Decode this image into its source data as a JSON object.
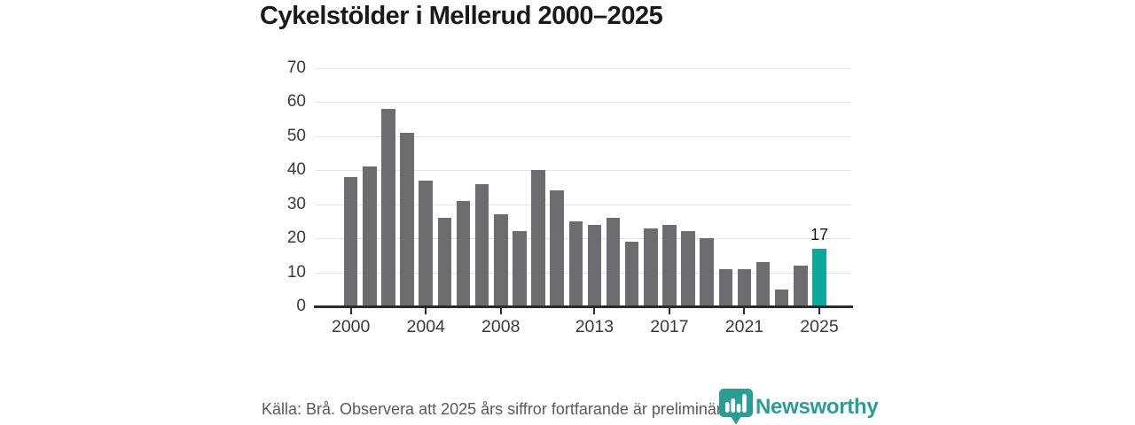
{
  "chart_data": {
    "type": "bar",
    "title": "Cykelstölder i Mellerud 2000–2025",
    "x": [
      2000,
      2001,
      2002,
      2003,
      2004,
      2005,
      2006,
      2007,
      2008,
      2009,
      2010,
      2011,
      2012,
      2013,
      2014,
      2015,
      2016,
      2017,
      2018,
      2019,
      2020,
      2021,
      2022,
      2023,
      2024,
      2025
    ],
    "values": [
      38,
      41,
      58,
      51,
      37,
      26,
      31,
      36,
      27,
      22,
      40,
      34,
      25,
      24,
      26,
      19,
      23,
      24,
      22,
      20,
      11,
      11,
      13,
      5,
      12,
      17
    ],
    "y_ticks": [
      0,
      10,
      20,
      30,
      40,
      50,
      60,
      70
    ],
    "ylim": [
      0,
      70
    ],
    "x_tick_years": [
      2000,
      2004,
      2008,
      2013,
      2017,
      2021,
      2025
    ],
    "x_tick_labels": [
      "2000",
      "2004",
      "2008",
      "2013",
      "2017",
      "2021",
      "2025"
    ],
    "grid": true,
    "legend": false,
    "bar_color": "#6c6c71",
    "highlight_index": 25,
    "highlight_color": "#0ca89e",
    "annotation": {
      "year": 2025,
      "text": "17"
    }
  },
  "footer": {
    "source_note": "Källa: Brå. Observera att 2025 års siffror fortfarande är preliminära.",
    "logo_text": "Newsworthy",
    "logo_color": "#2b9c96"
  }
}
